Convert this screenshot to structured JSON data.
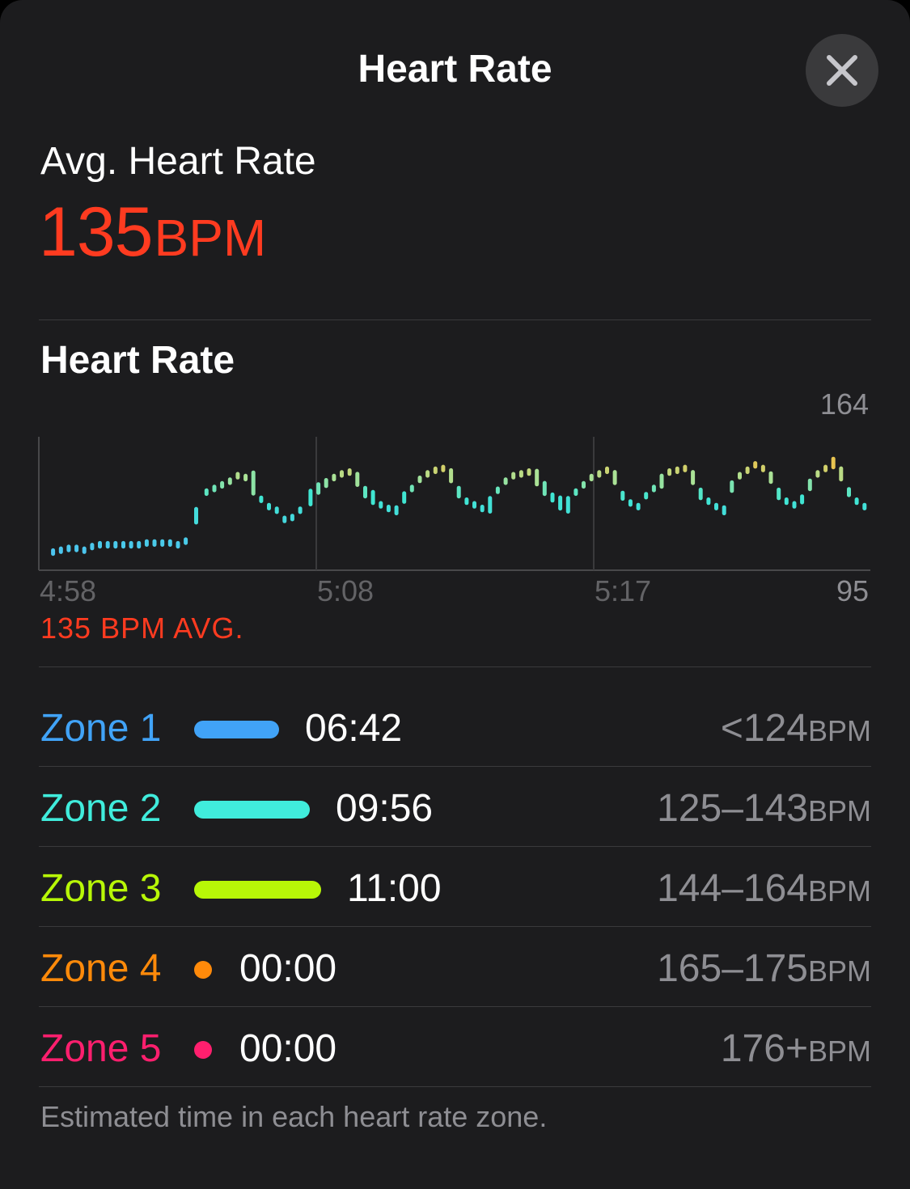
{
  "header": {
    "title": "Heart Rate",
    "close_icon": "close-icon"
  },
  "summary": {
    "label": "Avg. Heart Rate",
    "value": "135",
    "unit": "BPM",
    "color": "#ff3b20"
  },
  "section": {
    "title": "Heart Rate"
  },
  "chart_data": {
    "type": "scatter",
    "title": "Heart Rate",
    "x_unit": "minutes after 4:58",
    "x_tick_labels": [
      "4:58",
      "5:08",
      "5:17"
    ],
    "y_max_label": "164",
    "y_min_label": "95",
    "ylim": [
      95,
      164
    ],
    "avg_label": "135 BPM AVG.",
    "points": [
      {
        "x": 0.3,
        "y": 105,
        "h": 3
      },
      {
        "x": 0.6,
        "y": 106,
        "h": 3
      },
      {
        "x": 0.9,
        "y": 107,
        "h": 3
      },
      {
        "x": 1.2,
        "y": 107,
        "h": 3
      },
      {
        "x": 1.5,
        "y": 106,
        "h": 3
      },
      {
        "x": 1.8,
        "y": 108,
        "h": 3
      },
      {
        "x": 2.1,
        "y": 109,
        "h": 3
      },
      {
        "x": 2.4,
        "y": 109,
        "h": 3
      },
      {
        "x": 2.7,
        "y": 109,
        "h": 3
      },
      {
        "x": 3.0,
        "y": 109,
        "h": 3
      },
      {
        "x": 3.3,
        "y": 109,
        "h": 3
      },
      {
        "x": 3.6,
        "y": 109,
        "h": 3
      },
      {
        "x": 3.9,
        "y": 110,
        "h": 3
      },
      {
        "x": 4.2,
        "y": 110,
        "h": 3
      },
      {
        "x": 4.5,
        "y": 110,
        "h": 3
      },
      {
        "x": 4.8,
        "y": 110,
        "h": 3
      },
      {
        "x": 5.1,
        "y": 109,
        "h": 3
      },
      {
        "x": 5.4,
        "y": 111,
        "h": 3
      },
      {
        "x": 5.8,
        "y": 125,
        "h": 7
      },
      {
        "x": 6.2,
        "y": 138,
        "h": 3
      },
      {
        "x": 6.5,
        "y": 140,
        "h": 3
      },
      {
        "x": 6.8,
        "y": 142,
        "h": 3
      },
      {
        "x": 7.1,
        "y": 144,
        "h": 3
      },
      {
        "x": 7.4,
        "y": 147,
        "h": 3
      },
      {
        "x": 7.7,
        "y": 146,
        "h": 3
      },
      {
        "x": 8.0,
        "y": 143,
        "h": 10
      },
      {
        "x": 8.3,
        "y": 134,
        "h": 3
      },
      {
        "x": 8.6,
        "y": 130,
        "h": 3
      },
      {
        "x": 8.9,
        "y": 128,
        "h": 3
      },
      {
        "x": 9.2,
        "y": 123,
        "h": 3
      },
      {
        "x": 9.5,
        "y": 124,
        "h": 3
      },
      {
        "x": 9.8,
        "y": 128,
        "h": 3
      },
      {
        "x": 10.2,
        "y": 135,
        "h": 7
      },
      {
        "x": 10.5,
        "y": 140,
        "h": 5
      },
      {
        "x": 10.8,
        "y": 143,
        "h": 4
      },
      {
        "x": 11.1,
        "y": 146,
        "h": 3
      },
      {
        "x": 11.4,
        "y": 148,
        "h": 3
      },
      {
        "x": 11.7,
        "y": 149,
        "h": 3
      },
      {
        "x": 12.0,
        "y": 145,
        "h": 6
      },
      {
        "x": 12.3,
        "y": 138,
        "h": 5
      },
      {
        "x": 12.6,
        "y": 135,
        "h": 6
      },
      {
        "x": 12.9,
        "y": 131,
        "h": 3
      },
      {
        "x": 13.2,
        "y": 129,
        "h": 3
      },
      {
        "x": 13.5,
        "y": 128,
        "h": 4
      },
      {
        "x": 13.8,
        "y": 135,
        "h": 5
      },
      {
        "x": 14.1,
        "y": 140,
        "h": 3
      },
      {
        "x": 14.4,
        "y": 145,
        "h": 3
      },
      {
        "x": 14.7,
        "y": 148,
        "h": 3
      },
      {
        "x": 15.0,
        "y": 150,
        "h": 3
      },
      {
        "x": 15.3,
        "y": 151,
        "h": 3
      },
      {
        "x": 15.6,
        "y": 147,
        "h": 6
      },
      {
        "x": 15.9,
        "y": 138,
        "h": 5
      },
      {
        "x": 16.2,
        "y": 133,
        "h": 3
      },
      {
        "x": 16.5,
        "y": 131,
        "h": 3
      },
      {
        "x": 16.8,
        "y": 129,
        "h": 3
      },
      {
        "x": 17.1,
        "y": 131,
        "h": 7
      },
      {
        "x": 17.4,
        "y": 139,
        "h": 3
      },
      {
        "x": 17.7,
        "y": 144,
        "h": 3
      },
      {
        "x": 18.0,
        "y": 147,
        "h": 3
      },
      {
        "x": 18.3,
        "y": 148,
        "h": 3
      },
      {
        "x": 18.6,
        "y": 149,
        "h": 3
      },
      {
        "x": 18.9,
        "y": 146,
        "h": 7
      },
      {
        "x": 19.2,
        "y": 140,
        "h": 6
      },
      {
        "x": 19.5,
        "y": 135,
        "h": 4
      },
      {
        "x": 19.8,
        "y": 132,
        "h": 6
      },
      {
        "x": 20.1,
        "y": 131,
        "h": 7
      },
      {
        "x": 20.4,
        "y": 138,
        "h": 3
      },
      {
        "x": 20.7,
        "y": 142,
        "h": 3
      },
      {
        "x": 21.0,
        "y": 146,
        "h": 3
      },
      {
        "x": 21.3,
        "y": 148,
        "h": 3
      },
      {
        "x": 21.6,
        "y": 150,
        "h": 3
      },
      {
        "x": 21.9,
        "y": 146,
        "h": 6
      },
      {
        "x": 22.2,
        "y": 136,
        "h": 4
      },
      {
        "x": 22.5,
        "y": 132,
        "h": 3
      },
      {
        "x": 22.8,
        "y": 130,
        "h": 3
      },
      {
        "x": 23.1,
        "y": 136,
        "h": 3
      },
      {
        "x": 23.4,
        "y": 140,
        "h": 3
      },
      {
        "x": 23.7,
        "y": 144,
        "h": 6
      },
      {
        "x": 24.0,
        "y": 149,
        "h": 3
      },
      {
        "x": 24.3,
        "y": 150,
        "h": 3
      },
      {
        "x": 24.6,
        "y": 151,
        "h": 3
      },
      {
        "x": 24.9,
        "y": 146,
        "h": 6
      },
      {
        "x": 25.2,
        "y": 137,
        "h": 5
      },
      {
        "x": 25.5,
        "y": 133,
        "h": 3
      },
      {
        "x": 25.8,
        "y": 130,
        "h": 3
      },
      {
        "x": 26.1,
        "y": 128,
        "h": 4
      },
      {
        "x": 26.4,
        "y": 141,
        "h": 5
      },
      {
        "x": 26.7,
        "y": 147,
        "h": 3
      },
      {
        "x": 27.0,
        "y": 150,
        "h": 3
      },
      {
        "x": 27.3,
        "y": 153,
        "h": 3
      },
      {
        "x": 27.6,
        "y": 151,
        "h": 3
      },
      {
        "x": 27.9,
        "y": 146,
        "h": 5
      },
      {
        "x": 28.2,
        "y": 137,
        "h": 5
      },
      {
        "x": 28.5,
        "y": 133,
        "h": 3
      },
      {
        "x": 28.8,
        "y": 131,
        "h": 3
      },
      {
        "x": 29.1,
        "y": 134,
        "h": 4
      },
      {
        "x": 29.4,
        "y": 142,
        "h": 5
      },
      {
        "x": 29.7,
        "y": 148,
        "h": 3
      },
      {
        "x": 30.0,
        "y": 151,
        "h": 3
      },
      {
        "x": 30.3,
        "y": 154,
        "h": 5
      },
      {
        "x": 30.6,
        "y": 148,
        "h": 6
      },
      {
        "x": 30.9,
        "y": 138,
        "h": 4
      },
      {
        "x": 31.2,
        "y": 133,
        "h": 3
      },
      {
        "x": 31.5,
        "y": 130,
        "h": 3
      }
    ]
  },
  "zones": [
    {
      "name": "Zone 1",
      "color": "#41a3f7",
      "bar_fraction": 0.67,
      "time": "06:42",
      "range": "<124",
      "unit": "BPM"
    },
    {
      "name": "Zone 2",
      "color": "#40ecdc",
      "bar_fraction": 0.91,
      "time": "09:56",
      "range": "125–143",
      "unit": "BPM"
    },
    {
      "name": "Zone 3",
      "color": "#b8f707",
      "bar_fraction": 1.0,
      "time": "11:00",
      "range": "144–164",
      "unit": "BPM"
    },
    {
      "name": "Zone 4",
      "color": "#ff8a0a",
      "bar_fraction": 0,
      "time": "00:00",
      "range": "165–175",
      "unit": "BPM"
    },
    {
      "name": "Zone 5",
      "color": "#ff1f6e",
      "bar_fraction": 0,
      "time": "00:00",
      "range": "176+",
      "unit": "BPM"
    }
  ],
  "footnote": "Estimated time in each heart rate zone."
}
